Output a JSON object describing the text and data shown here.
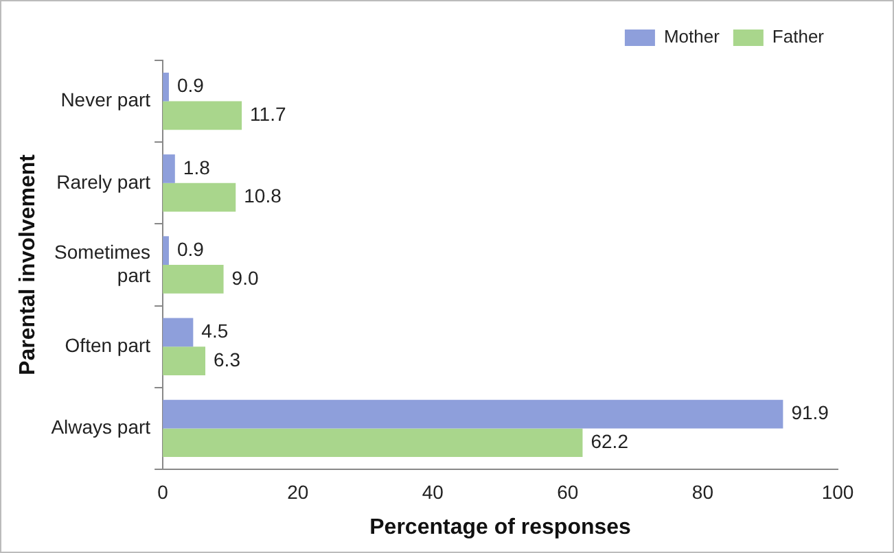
{
  "chart_data": {
    "type": "bar",
    "orientation": "horizontal",
    "xlabel": "Percentage of responses",
    "ylabel": "Parental involvement",
    "categories": [
      "Never part",
      "Rarely part",
      "Sometimes part",
      "Often part",
      "Always part"
    ],
    "series": [
      {
        "name": "Mother",
        "color": "#8e9fdb",
        "values": [
          0.9,
          1.8,
          0.9,
          4.5,
          91.9
        ],
        "value_labels": [
          "0.9",
          "1.8",
          "0.9",
          "4.5",
          "91.9"
        ]
      },
      {
        "name": "Father",
        "color": "#a9d68c",
        "values": [
          11.7,
          10.8,
          9.0,
          6.3,
          62.2
        ],
        "value_labels": [
          "11.7",
          "10.8",
          "9.0",
          "6.3",
          "62.2"
        ]
      }
    ],
    "xlim": [
      0,
      100
    ],
    "xticks": [
      0,
      20,
      40,
      60,
      80,
      100
    ],
    "grid": false,
    "legend": "top right"
  }
}
